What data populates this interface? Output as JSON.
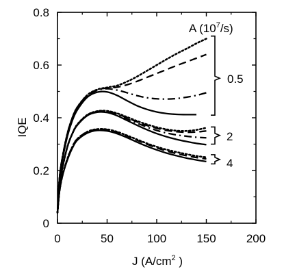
{
  "chart_data": {
    "type": "line",
    "xlabel": "J (A/cm",
    "xlabel_sup": "2",
    "xlabel_tail": " )",
    "ylabel": "IQE",
    "xlim": [
      0,
      200
    ],
    "ylim": [
      0,
      0.8
    ],
    "xticks": [
      "0",
      "50",
      "100",
      "150",
      "200"
    ],
    "yticks": [
      "0",
      "0.2",
      "0.4",
      "0.6",
      "0.8"
    ],
    "legend_title": "A (10",
    "legend_title_sup": "7",
    "legend_title_tail": "/s)",
    "group_labels": [
      "0.5",
      "2",
      "4"
    ],
    "groups": [
      {
        "label": "0.5",
        "series": [
          {
            "style": "dotted",
            "x": [
              0,
              2,
              5,
              10,
              15,
              20,
              30,
              40,
              50,
              60,
              70,
              80,
              90,
              100,
              110,
              120,
              130,
              140,
              150
            ],
            "y": [
              0.04,
              0.17,
              0.25,
              0.34,
              0.4,
              0.44,
              0.486,
              0.507,
              0.515,
              0.522,
              0.537,
              0.556,
              0.578,
              0.6,
              0.622,
              0.643,
              0.662,
              0.682,
              0.7
            ]
          },
          {
            "style": "dashed",
            "x": [
              0,
              2,
              5,
              10,
              15,
              20,
              30,
              40,
              50,
              60,
              70,
              80,
              90,
              100,
              110,
              120,
              130,
              140,
              150
            ],
            "y": [
              0.04,
              0.17,
              0.25,
              0.34,
              0.4,
              0.44,
              0.485,
              0.506,
              0.513,
              0.516,
              0.525,
              0.538,
              0.553,
              0.568,
              0.583,
              0.598,
              0.612,
              0.626,
              0.64
            ]
          },
          {
            "style": "dashdot",
            "x": [
              0,
              2,
              5,
              10,
              15,
              20,
              30,
              40,
              50,
              60,
              70,
              80,
              90,
              100,
              110,
              120,
              130,
              140,
              150
            ],
            "y": [
              0.04,
              0.17,
              0.25,
              0.34,
              0.4,
              0.44,
              0.484,
              0.504,
              0.51,
              0.505,
              0.495,
              0.484,
              0.476,
              0.472,
              0.471,
              0.473,
              0.478,
              0.485,
              0.495
            ]
          },
          {
            "style": "solid",
            "x": [
              0,
              2,
              5,
              10,
              15,
              20,
              30,
              40,
              50,
              60,
              70,
              80,
              90,
              100,
              110,
              120,
              130,
              140
            ],
            "y": [
              0.04,
              0.16,
              0.24,
              0.33,
              0.39,
              0.43,
              0.478,
              0.497,
              0.498,
              0.485,
              0.465,
              0.446,
              0.432,
              0.422,
              0.416,
              0.413,
              0.412,
              0.412
            ]
          }
        ]
      },
      {
        "label": "2",
        "series": [
          {
            "style": "dotted",
            "x": [
              0,
              2,
              5,
              10,
              15,
              20,
              30,
              40,
              50,
              60,
              70,
              80,
              90,
              100,
              110,
              120,
              130,
              140,
              150
            ],
            "y": [
              0.04,
              0.14,
              0.21,
              0.29,
              0.34,
              0.375,
              0.411,
              0.425,
              0.426,
              0.417,
              0.403,
              0.388,
              0.375,
              0.364,
              0.356,
              0.351,
              0.35,
              0.354,
              0.362
            ]
          },
          {
            "style": "dashed",
            "x": [
              0,
              2,
              5,
              10,
              15,
              20,
              30,
              40,
              50,
              60,
              70,
              80,
              90,
              100,
              110,
              120,
              130,
              140,
              150
            ],
            "y": [
              0.04,
              0.14,
              0.21,
              0.29,
              0.34,
              0.374,
              0.41,
              0.424,
              0.425,
              0.415,
              0.4,
              0.385,
              0.371,
              0.36,
              0.352,
              0.347,
              0.345,
              0.346,
              0.35
            ]
          },
          {
            "style": "dashdot",
            "x": [
              0,
              2,
              5,
              10,
              15,
              20,
              30,
              40,
              50,
              60,
              70,
              80,
              90,
              100,
              110,
              120,
              130,
              140,
              150
            ],
            "y": [
              0.04,
              0.14,
              0.21,
              0.29,
              0.34,
              0.373,
              0.409,
              0.423,
              0.423,
              0.412,
              0.396,
              0.38,
              0.365,
              0.352,
              0.342,
              0.335,
              0.33,
              0.326,
              0.324
            ]
          },
          {
            "style": "solid",
            "x": [
              0,
              2,
              5,
              10,
              15,
              20,
              30,
              40,
              50,
              60,
              70,
              80,
              90,
              100,
              110,
              120,
              130,
              140,
              150
            ],
            "y": [
              0.04,
              0.14,
              0.21,
              0.29,
              0.34,
              0.372,
              0.408,
              0.421,
              0.42,
              0.408,
              0.39,
              0.372,
              0.355,
              0.34,
              0.328,
              0.318,
              0.31,
              0.303,
              0.298
            ]
          }
        ]
      },
      {
        "label": "4",
        "series": [
          {
            "style": "dotted",
            "x": [
              0,
              2,
              5,
              10,
              15,
              20,
              30,
              40,
              50,
              60,
              70,
              80,
              90,
              100,
              110,
              120,
              130,
              140,
              150
            ],
            "y": [
              0.04,
              0.12,
              0.18,
              0.245,
              0.29,
              0.32,
              0.347,
              0.357,
              0.356,
              0.347,
              0.333,
              0.318,
              0.303,
              0.29,
              0.279,
              0.27,
              0.262,
              0.255,
              0.25
            ]
          },
          {
            "style": "dashed",
            "x": [
              0,
              2,
              5,
              10,
              15,
              20,
              30,
              40,
              50,
              60,
              70,
              80,
              90,
              100,
              110,
              120,
              130,
              140,
              150
            ],
            "y": [
              0.04,
              0.12,
              0.18,
              0.245,
              0.29,
              0.32,
              0.346,
              0.356,
              0.355,
              0.345,
              0.331,
              0.315,
              0.3,
              0.286,
              0.274,
              0.264,
              0.256,
              0.249,
              0.244
            ]
          },
          {
            "style": "solid",
            "x": [
              0,
              2,
              5,
              10,
              15,
              20,
              30,
              40,
              50,
              60,
              70,
              80,
              90,
              100,
              110,
              120,
              130,
              140,
              150
            ],
            "y": [
              0.04,
              0.12,
              0.18,
              0.24,
              0.285,
              0.315,
              0.342,
              0.352,
              0.35,
              0.34,
              0.325,
              0.308,
              0.292,
              0.278,
              0.266,
              0.256,
              0.247,
              0.24,
              0.234
            ]
          }
        ]
      }
    ]
  }
}
